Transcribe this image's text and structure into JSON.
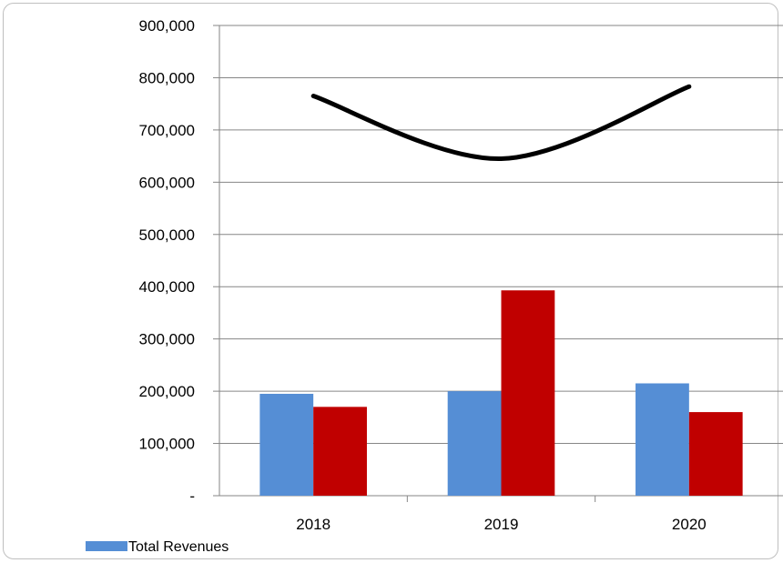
{
  "chart_data": {
    "type": "bar",
    "title": "",
    "xlabel": "",
    "ylabel": "",
    "categories": [
      "2018",
      "2019",
      "2020"
    ],
    "ylim": [
      0,
      900000
    ],
    "y_ticks": [
      0,
      100000,
      200000,
      300000,
      400000,
      500000,
      600000,
      700000,
      800000,
      900000
    ],
    "y_tick_labels": [
      "-",
      "100,000",
      "200,000",
      "300,000",
      "400,000",
      "500,000",
      "600,000",
      "700,000",
      "800,000",
      "900,000"
    ],
    "grid": true,
    "legend_position": "bottom-left",
    "series": [
      {
        "name": "Total Revenues",
        "kind": "bar",
        "color": "#558ed5",
        "values": [
          195000,
          200000,
          215000
        ]
      },
      {
        "kind": "bar",
        "color": "#c00000",
        "values": [
          170000,
          393000,
          160000
        ]
      },
      {
        "kind": "line",
        "color": "#000000",
        "values": [
          765000,
          645000,
          783000
        ]
      }
    ]
  }
}
